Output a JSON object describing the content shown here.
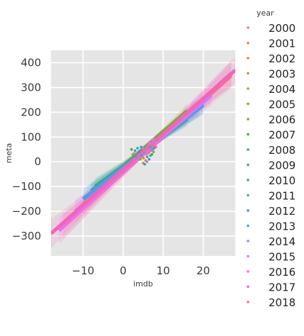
{
  "chart_data": {
    "type": "scatter",
    "xlabel": "imdb",
    "ylabel": "meta",
    "xlim": [
      -18,
      28
    ],
    "ylim": [
      -380,
      450
    ],
    "x_ticks": [
      -10,
      0,
      10,
      20
    ],
    "y_ticks": [
      -300,
      -200,
      -100,
      0,
      100,
      200,
      300,
      400
    ],
    "grid": true,
    "background": "#e5e5e5",
    "legend": {
      "title": "year",
      "placement": "right",
      "entries": [
        {
          "label": "2000",
          "color": "#f77189"
        },
        {
          "label": "2001",
          "color": "#f7754f"
        },
        {
          "label": "2002",
          "color": "#dc8932"
        },
        {
          "label": "2003",
          "color": "#c39532"
        },
        {
          "label": "2004",
          "color": "#ae9d31"
        },
        {
          "label": "2005",
          "color": "#97a431"
        },
        {
          "label": "2006",
          "color": "#77ab31"
        },
        {
          "label": "2007",
          "color": "#33b039"
        },
        {
          "label": "2008",
          "color": "#35ac7a"
        },
        {
          "label": "2009",
          "color": "#36a98f"
        },
        {
          "label": "2010",
          "color": "#38a7a3"
        },
        {
          "label": "2011",
          "color": "#3ba3ec"
        },
        {
          "label": "2012",
          "color": "#3b8ef6"
        },
        {
          "label": "2013",
          "color": "#5a98f0"
        },
        {
          "label": "2014",
          "color": "#9d85f5"
        },
        {
          "label": "2015",
          "color": "#cc7af4"
        },
        {
          "label": "2016",
          "color": "#f16ee8"
        },
        {
          "label": "2017",
          "color": "#f45fd4"
        },
        {
          "label": "2018",
          "color": "#f563b7"
        }
      ]
    },
    "regression_lines": [
      {
        "year": "2000",
        "x": [
          -15,
          27
        ],
        "y": [
          -262,
          348
        ]
      },
      {
        "year": "2003",
        "x": [
          -10,
          18
        ],
        "y": [
          -170,
          218
        ]
      },
      {
        "year": "2006",
        "x": [
          -8,
          16
        ],
        "y": [
          -128,
          206
        ]
      },
      {
        "year": "2008",
        "x": [
          -7,
          16
        ],
        "y": [
          -100,
          172
        ]
      },
      {
        "year": "2009",
        "x": [
          -8,
          19
        ],
        "y": [
          -118,
          218
        ]
      },
      {
        "year": "2011",
        "x": [
          -10,
          20
        ],
        "y": [
          -150,
          228
        ]
      },
      {
        "year": "2013",
        "x": [
          -9,
          20
        ],
        "y": [
          -140,
          232
        ]
      },
      {
        "year": "2015",
        "x": [
          -12,
          22
        ],
        "y": [
          -200,
          268
        ]
      },
      {
        "year": "2016",
        "x": [
          -16,
          27
        ],
        "y": [
          -278,
          358
        ]
      },
      {
        "year": "2018",
        "x": [
          -18,
          28
        ],
        "y": [
          -290,
          370
        ]
      }
    ],
    "points": [
      {
        "x": 2.1,
        "y": 50,
        "year": "2007"
      },
      {
        "x": 2.4,
        "y": 30,
        "year": "2005"
      },
      {
        "x": 3.0,
        "y": 45,
        "year": "2009"
      },
      {
        "x": 3.2,
        "y": 20,
        "year": "2011"
      },
      {
        "x": 4.0,
        "y": 40,
        "year": "2012"
      },
      {
        "x": 4.3,
        "y": 10,
        "year": "2006"
      },
      {
        "x": 4.6,
        "y": 25,
        "year": "2010"
      },
      {
        "x": 4.9,
        "y": 55,
        "year": "2015"
      },
      {
        "x": 5.1,
        "y": 15,
        "year": "2002"
      },
      {
        "x": 5.3,
        "y": 35,
        "year": "2013"
      },
      {
        "x": 5.5,
        "y": 50,
        "year": "2017"
      },
      {
        "x": 5.6,
        "y": 5,
        "year": "2001"
      },
      {
        "x": 5.8,
        "y": 30,
        "year": "2016"
      },
      {
        "x": 5.9,
        "y": 60,
        "year": "2014"
      },
      {
        "x": 6.0,
        "y": 20,
        "year": "2008"
      },
      {
        "x": 6.1,
        "y": 45,
        "year": "2000"
      },
      {
        "x": 6.2,
        "y": 70,
        "year": "2018"
      },
      {
        "x": 6.3,
        "y": 35,
        "year": "2003"
      },
      {
        "x": 6.4,
        "y": 55,
        "year": "2004"
      },
      {
        "x": 6.5,
        "y": 10,
        "year": "2012"
      },
      {
        "x": 6.6,
        "y": 40,
        "year": "2015"
      },
      {
        "x": 6.7,
        "y": 75,
        "year": "2016"
      },
      {
        "x": 6.8,
        "y": 25,
        "year": "2009"
      },
      {
        "x": 6.9,
        "y": 60,
        "year": "2011"
      },
      {
        "x": 7.0,
        "y": 45,
        "year": "2017"
      },
      {
        "x": 7.1,
        "y": 85,
        "year": "2014"
      },
      {
        "x": 7.2,
        "y": 30,
        "year": "2007"
      },
      {
        "x": 7.3,
        "y": 65,
        "year": "2018"
      },
      {
        "x": 7.4,
        "y": 50,
        "year": "2013"
      },
      {
        "x": 7.5,
        "y": 90,
        "year": "2016"
      },
      {
        "x": 7.6,
        "y": 40,
        "year": "2006"
      },
      {
        "x": 7.7,
        "y": 70,
        "year": "2000"
      },
      {
        "x": 7.8,
        "y": 55,
        "year": "2010"
      },
      {
        "x": 8.0,
        "y": 80,
        "year": "2015"
      },
      {
        "x": 8.2,
        "y": 60,
        "year": "2017"
      },
      {
        "x": 8.4,
        "y": 85,
        "year": "2018"
      },
      {
        "x": 5.0,
        "y": -5,
        "year": "2005"
      },
      {
        "x": 5.4,
        "y": -10,
        "year": "2008"
      },
      {
        "x": 6.0,
        "y": 0,
        "year": "2014"
      },
      {
        "x": 4.5,
        "y": 60,
        "year": "2009"
      },
      {
        "x": 3.6,
        "y": 55,
        "year": "2012"
      },
      {
        "x": 2.8,
        "y": 35,
        "year": "2016"
      }
    ]
  }
}
